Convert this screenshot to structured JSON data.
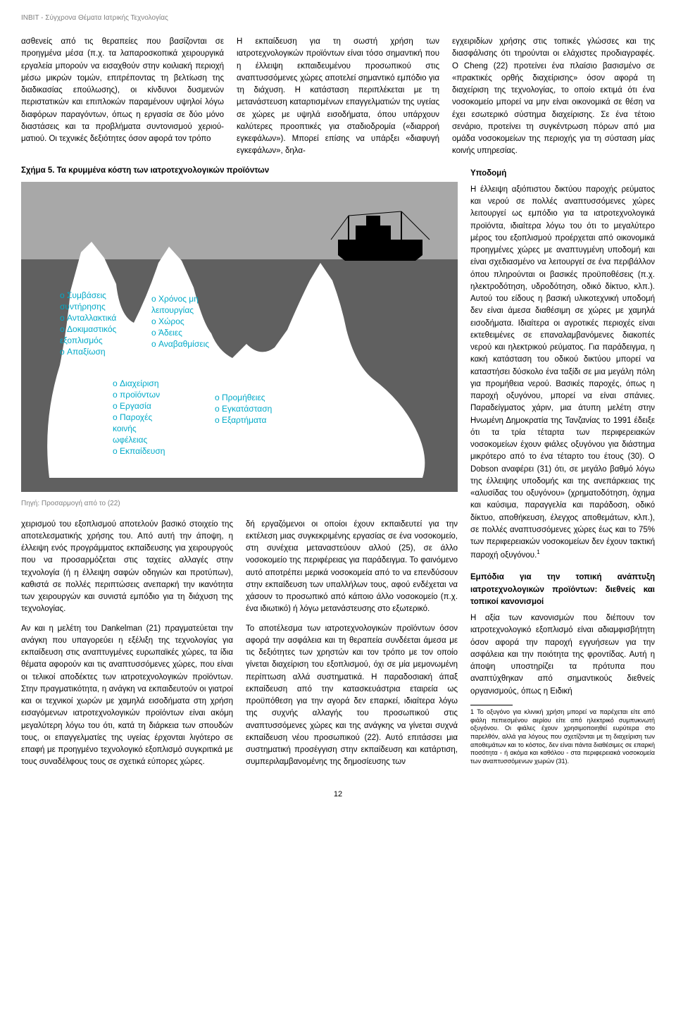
{
  "header": "INBIT - Σύγχρονα Θέματα Ιατρικής Τεχνολογίας",
  "col1_top": "ασθενείς από τις θεραπείες που βασίζονται σε προηγμένα μέσα (π.χ. τα λαπαροσκοπικά χειρουργικά εργαλεία μπορούν να εισαχθούν στην κοιλιακή περιοχή μέσω μικρών τομών, επιτρέποντας τη βελτίωση της διαδικασίας επούλωσης), οι κίνδυνοι δυσμενών περιστατικών και επιπλοκών παραμένουν υψηλοί λόγω διαφόρων παραγόντων, όπως η εργασία σε δύο μόνο διαστάσεις και τα προβλήματα συντονισμού χεριού-ματιού. Οι τεχνικές δεξιότητες όσον αφορά τον τρόπο",
  "col2_top": "Η εκπαίδευση για τη σωστή χρήση των ιατροτεχνολογικών προϊόντων είναι τόσο σημαντική που η έλλειψη εκπαιδευμένου προσωπικού στις αναπτυσσόμενες χώρες αποτελεί σημαντικό εμπόδιο για τη διάχυση. Η κατάσταση περιπλέκεται με τη μετανάστευση καταρτισμένων επαγγελματιών της υγείας σε χώρες με υψηλά εισοδήματα, όπου υπάρχουν καλύτερες προοπτικές για σταδιοδρομία («διαρροή εγκεφάλων»). Μπορεί επίσης να υπάρξει «διαφυγή εγκεφάλων», δηλα-",
  "col3_top_p1": "εγχειριδίων χρήσης στις τοπικές γλώσσες και της διασφάλισης ότι τηρούνται οι ελάχιστες προδιαγραφές. Ο Cheng (22) προτείνει ένα πλαίσιο βασισμένο σε «πρακτικές ορθής διαχείρισης» όσον αφορά τη διαχείριση της τεχνολογίας, το οποίο εκτιμά ότι ένα νοσοκομείο μπορεί να μην είναι οικονομικά σε θέση να έχει εσωτερικό σύστημα διαχείρισης. Σε ένα τέτοιο σενάριο, προτείνει τη συγκέντρωση πόρων από μια ομάδα νοσοκομείων της περιοχής για τη σύσταση μίας κοινής υπηρεσίας.",
  "figure_caption": "Σχήμα 5. Τα κρυμμένα κόστη των ιατροτεχνολογικών προϊόντων",
  "iceberg": {
    "sky_color": "#a8a8a8",
    "water_color": "#606060",
    "ice_color": "#ffffff",
    "text_color": "#00a9c7",
    "ship_color": "#000000",
    "tip1": [
      "Συμβάσεις",
      "συντήρησης",
      "Ανταλλακτικά",
      "Δοκιμαστικός",
      "εξοπλισμός",
      "Απαξίωση"
    ],
    "tip2": [
      "Χρόνος μη",
      "λειτουργίας",
      "Χώρος",
      "Άδειες",
      "Αναβαθμίσεις"
    ],
    "tip3": [
      "Διαχείριση",
      "προϊόντων",
      "Εργασία",
      "Παροχές",
      "κοινής",
      "ωφέλειας",
      "Εκπαίδευση"
    ],
    "tip4": [
      "Προμήθειες",
      "Εγκατάσταση",
      "Εξαρτήματα"
    ],
    "bullet": "o"
  },
  "source": "Πηγή: Προσαρμογή από το (22)",
  "sub_infra": "Υποδομή",
  "col3_infra": "Η έλλειψη αξιόπιστου δικτύου παροχής ρεύματος και νερού σε πολλές αναπτυσσόμενες χώρες λειτουργεί ως εμπόδιο για τα ιατροτεχνολογικά προϊόντα, ιδιαίτερα λόγω του ότι το μεγαλύτερο μέρος του εξοπλισμού προέρχεται από οικονομικά προηγμένες χώρες με αναπτυγμένη υποδομή και είναι σχεδιασμένο να λειτουργεί σε ένα περιβάλλον όπου πληρούνται οι βασικές προϋποθέσεις (π.χ. ηλεκτροδότηση, υδροδότηση, οδικό δίκτυο, κλπ.). Αυτού του είδους η βασική υλικοτεχνική υποδομή δεν είναι άμεσα διαθέσιμη σε χώρες με χαμηλά εισοδήματα. Ιδιαίτερα οι αγροτικές περιοχές είναι εκτεθειμένες σε επαναλαμβανόμενες διακοπές νερού και ηλεκτρικού ρεύματος. Για παράδειγμα, η κακή κατάσταση του οδικού δικτύου μπορεί να καταστήσει δύσκολο ένα ταξίδι σε μια μεγάλη πόλη για προμήθεια νερού. Βασικές παροχές, όπως η παροχή οξυγόνου, μπορεί να είναι σπάνιες. Παραδείγματος χάριν, μια άτυπη μελέτη στην Ηνωμένη Δημοκρατία της Τανζανίας το 1991 έδειξε ότι τα τρία τέταρτα των περιφερειακών νοσοκομείων έχουν φιάλες οξυγόνου για διάστημα μικρότερο από το ένα τέταρτο του έτους (30). Ο Dobson αναφέρει (31) ότι, σε μεγάλο βαθμό λόγω της έλλειψης υποδομής και της ανεπάρκειας της «αλυσίδας του οξυγόνου» (χρηματοδότηση, όχημα και καύσιμα, παραγγελία και παράδοση, οδικό δίκτυο, αποθήκευση, έλεγχος αποθεμάτων, κλπ.), σε πολλές αναπτυσσόμενες χώρες έως και το 75% των περιφερειακών νοσοκομείων δεν έχουν τακτική παροχή οξυγόνου.",
  "sub_barriers": "Εμπόδια για την τοπική ανάπτυξη ιατροτεχνολογικών προϊόντων: διεθνείς και τοπικοί κανονισμοί",
  "col3_barriers": "Η αξία των κανονισμών που διέπουν τον ιατροτεχνολογικό εξοπλισμό είναι αδιαμφισβήτητη όσον αφορά την παροχή εγγυήσεων για την ασφάλεια και την ποιότητα της φροντίδας. Αυτή η άποψη υποστηρίζει τα πρότυπα που αναπτύχθηκαν από σημαντικούς διεθνείς οργανισμούς, όπως η Ειδική",
  "left_p1": "χειρισμού του εξοπλισμού αποτελούν βασικό στοιχείο της αποτελεσματικής χρήσης του. Από αυτή την άποψη, η έλλειψη ενός προγράμματος εκπαίδευσης για χειρουργούς που να προσαρμόζεται στις ταχείες αλλαγές στην τεχνολογία (ή η έλλειψη σαφών οδηγιών και προτύπων), καθιστά σε πολλές περιπτώσεις ανεπαρκή την ικανότητα των χειρουργών και συνιστά εμπόδιο για τη διάχυση της τεχνολογίας.",
  "left_p2": "Αν και η μελέτη του Dankelman (21) πραγματεύεται την ανάγκη που υπαγορεύει η εξέλιξη της τεχνολογίας για εκπαίδευση στις αναπτυγμένες ευρωπαϊκές χώρες, τα ίδια θέματα αφορούν και τις αναπτυσσόμενες χώρες, που είναι οι τελικοί αποδέκτες των ιατροτεχνολογικών προϊόντων. Στην πραγματικότητα, η ανάγκη να εκπαιδευτούν οι γιατροί και οι τεχνικοί χωρών με χαμηλά εισοδήματα στη χρήση εισαγόμενων ιατροτεχνολογικών προϊόντων είναι ακόμη μεγαλύτερη λόγω του ότι, κατά τη διάρκεια των σπουδών τους, οι επαγγελματίες της υγείας έρχονται λιγότερο σε επαφή με προηγμένο τεχνολογικό εξοπλισμό συγκριτικά με τους συναδέλφους τους σε σχετικά εύπορες χώρες.",
  "mid_p1": "δή εργαζόμενοι οι οποίοι έχουν εκπαιδευτεί για την εκτέλεση μιας συγκεκριμένης εργασίας σε ένα νοσοκομείο, στη συνέχεια μεταναστεύουν αλλού (25), σε άλλο νοσοκομείο της περιφέρειας για παράδειγμα. Το φαινόμενο αυτό αποτρέπει μερικά νοσοκομεία από το να επενδύσουν στην εκπαίδευση των υπαλλήλων τους, αφού ενδέχεται να χάσουν το προσωπικό από κάποιο άλλο νοσοκομείο (π.χ. ένα ιδιωτικό) ή λόγω μετανάστευσης στο εξωτερικό.",
  "mid_p2": "Το αποτέλεσμα των ιατροτεχνολογικών προϊόντων όσον αφορά την ασφάλεια και τη θεραπεία συνδέεται άμεσα με τις δεξιότητες των χρηστών και τον τρόπο με τον οποίο γίνεται διαχείριση του εξοπλισμού, όχι σε μία μεμονωμένη περίπτωση αλλά συστηματικά. Η παραδοσιακή άπαξ εκπαίδευση από την κατασκευάστρια εταιρεία ως προϋπόθεση για την αγορά δεν επαρκεί, ιδιαίτερα λόγω της συχνής αλλαγής του προσωπικού στις αναπτυσσόμενες χώρες και της ανάγκης να γίνεται συχνά εκπαίδευση νέου προσωπικού (22). Αυτό επιτάσσει μια συστηματική προσέγγιση στην εκπαίδευση και κατάρτιση, συμπεριλαμβανομένης της δημοσίευσης των",
  "footnote": "1  Το οξυγόνο για κλινική χρήση μπορεί να παρέχεται είτε από φιάλη πεπιεσμένου αερίου είτε από ηλεκτρικό συμπυκνωτή οξυγόνου. Οι φιάλες έχουν χρησιμοποιηθεί ευρύτερα στο παρελθόν, αλλά για λόγους που σχετίζονται με τη διαχείριση των αποθεμάτων και το κόστος, δεν είναι πάντα διαθέσιμες σε επαρκή ποσότητα - ή ακόμα και καθόλου - στα περιφερειακά νοσοκομεία των αναπτυσσόμενων χωρών (31).",
  "page_number": "12"
}
